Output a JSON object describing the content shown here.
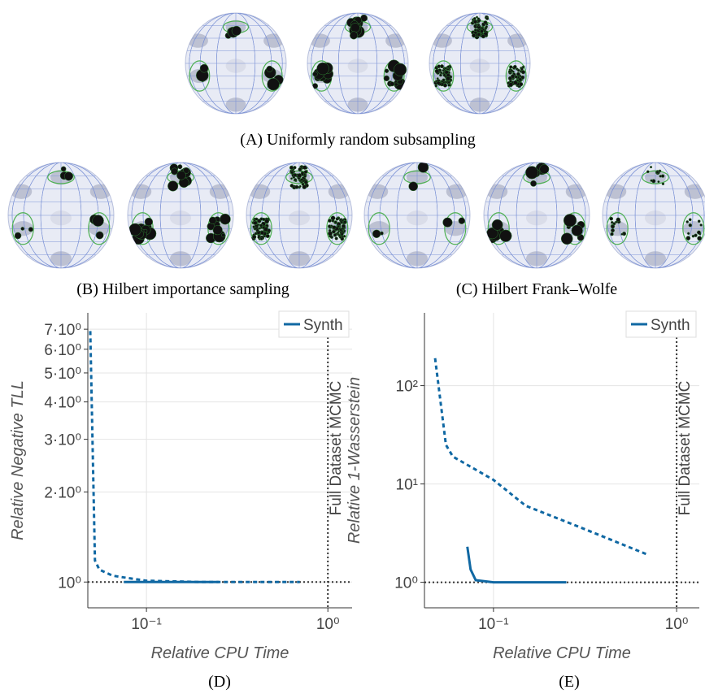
{
  "panels": {
    "a": {
      "caption": "(A) Uniformly random subsampling"
    },
    "b": {
      "caption": "(B) Hilbert importance sampling"
    },
    "c": {
      "caption": "(C) Hilbert Frank–Wolfe"
    },
    "d": {
      "caption": "(D)"
    },
    "e": {
      "caption": "(E)"
    }
  },
  "chart_data": [
    {
      "type": "line",
      "x_label": "Relative CPU Time",
      "y_label": "Relative Negative TLL",
      "xlog": true,
      "ylog": true,
      "grid": true,
      "legend": "upper right",
      "xlim": [
        0.0475,
        1.36
      ],
      "ylim": [
        0.82,
        7.94
      ],
      "xticks": [
        {
          "value": 0.1,
          "label": "10⁻¹"
        },
        {
          "value": 1,
          "label": "10⁰"
        }
      ],
      "yticks": [
        {
          "value": 1,
          "label": "10⁰"
        },
        {
          "value": 2,
          "label": "2·10⁰"
        },
        {
          "value": 3,
          "label": "3·10⁰"
        },
        {
          "value": 4,
          "label": "4·10⁰"
        },
        {
          "value": 5,
          "label": "5·10⁰"
        },
        {
          "value": 6,
          "label": "6·10⁰"
        },
        {
          "value": 7,
          "label": "7·10⁰"
        }
      ],
      "vline": 1,
      "hline": 1,
      "annotation": "Full Dataset MCMC",
      "series": [
        {
          "name": "Synth",
          "color": "#1068a3",
          "style": "solid",
          "x": [
            0.075,
            0.1,
            0.15,
            0.25
          ],
          "values": [
            1.0,
            1.0,
            1.0,
            1.0
          ]
        },
        {
          "color": "#1068a3",
          "style": "dashed",
          "x": [
            0.049,
            0.052,
            0.055,
            0.065,
            0.08,
            0.1,
            0.2,
            0.4,
            0.7
          ],
          "values": [
            6.9,
            1.18,
            1.1,
            1.05,
            1.03,
            1.01,
            1.0,
            1.0,
            1.0
          ]
        }
      ]
    },
    {
      "type": "line",
      "x_label": "Relative CPU Time",
      "y_label": "Relative 1-Wasserstein",
      "xlog": true,
      "ylog": true,
      "grid": true,
      "legend": "upper right",
      "xlim": [
        0.042,
        1.33
      ],
      "ylim": [
        0.55,
        550
      ],
      "xticks": [
        {
          "value": 0.1,
          "label": "10⁻¹"
        },
        {
          "value": 1,
          "label": "10⁰"
        }
      ],
      "yticks": [
        {
          "value": 1,
          "label": "10⁰"
        },
        {
          "value": 10,
          "label": "10¹"
        },
        {
          "value": 100,
          "label": "10²"
        }
      ],
      "vline": 1,
      "hline": 1,
      "annotation": "Full Dataset MCMC",
      "series": [
        {
          "name": "Synth",
          "color": "#1068a3",
          "style": "solid",
          "x": [
            0.072,
            0.075,
            0.08,
            0.1,
            0.25
          ],
          "values": [
            2.3,
            1.35,
            1.05,
            1.0,
            1.0
          ]
        },
        {
          "color": "#1068a3",
          "style": "dashed",
          "x": [
            0.048,
            0.055,
            0.06,
            0.1,
            0.15,
            0.3,
            0.7
          ],
          "values": [
            190,
            25,
            19,
            11,
            6,
            3.6,
            1.9
          ]
        }
      ]
    }
  ]
}
